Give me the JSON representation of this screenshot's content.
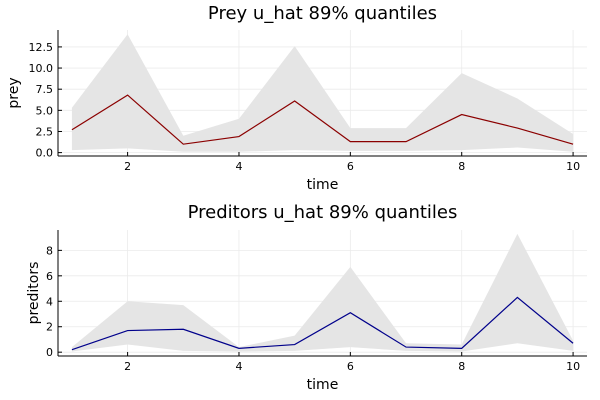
{
  "chart_data": [
    {
      "type": "line",
      "title": "Prey u_hat 89% quantiles",
      "xlabel": "time",
      "ylabel": "prey",
      "x": [
        1,
        2,
        3,
        4,
        5,
        6,
        7,
        8,
        9,
        10
      ],
      "xlim": [
        0.75,
        10.25
      ],
      "ylim": [
        -0.4,
        14.5
      ],
      "xticks": [
        2,
        4,
        6,
        8,
        10
      ],
      "xtick_labels": [
        "2",
        "4",
        "6",
        "8",
        "10"
      ],
      "yticks": [
        0,
        2.5,
        5,
        7.5,
        10,
        12.5
      ],
      "ytick_labels": [
        "0.0",
        "2.5",
        "5.0",
        "7.5",
        "10.0",
        "12.5"
      ],
      "grid": true,
      "legend": "none",
      "band": {
        "lower": [
          0.3,
          0.5,
          0.1,
          0.1,
          0.3,
          0.2,
          0.2,
          0.3,
          0.6,
          0.1
        ],
        "upper": [
          5.3,
          14.0,
          2.0,
          4.0,
          12.6,
          2.9,
          2.9,
          9.4,
          6.4,
          2.2
        ],
        "color": "#e5e5e5"
      },
      "series": [
        {
          "values": [
            2.7,
            6.8,
            1.0,
            1.9,
            6.1,
            1.3,
            1.3,
            4.5,
            2.9,
            1.0
          ],
          "color": "#8b0000"
        }
      ]
    },
    {
      "type": "line",
      "title": "Preditors u_hat 89% quantiles",
      "xlabel": "time",
      "ylabel": "preditors",
      "x": [
        1,
        2,
        3,
        4,
        5,
        6,
        7,
        8,
        9,
        10
      ],
      "xlim": [
        0.75,
        10.25
      ],
      "ylim": [
        -0.3,
        9.6
      ],
      "xticks": [
        2,
        4,
        6,
        8,
        10
      ],
      "xtick_labels": [
        "2",
        "4",
        "6",
        "8",
        "10"
      ],
      "yticks": [
        0,
        2,
        4,
        6,
        8
      ],
      "ytick_labels": [
        "0",
        "2",
        "4",
        "6",
        "8"
      ],
      "grid": true,
      "legend": "none",
      "band": {
        "lower": [
          0.05,
          0.6,
          0.1,
          0.05,
          0.1,
          0.4,
          0.1,
          0.05,
          0.7,
          0.1
        ],
        "upper": [
          0.4,
          4.0,
          3.7,
          0.4,
          1.3,
          6.7,
          0.7,
          0.6,
          9.3,
          0.9
        ],
        "color": "#e5e5e5"
      },
      "series": [
        {
          "values": [
            0.2,
            1.7,
            1.8,
            0.3,
            0.6,
            3.1,
            0.4,
            0.3,
            4.3,
            0.7
          ],
          "color": "#00008b"
        }
      ]
    }
  ]
}
